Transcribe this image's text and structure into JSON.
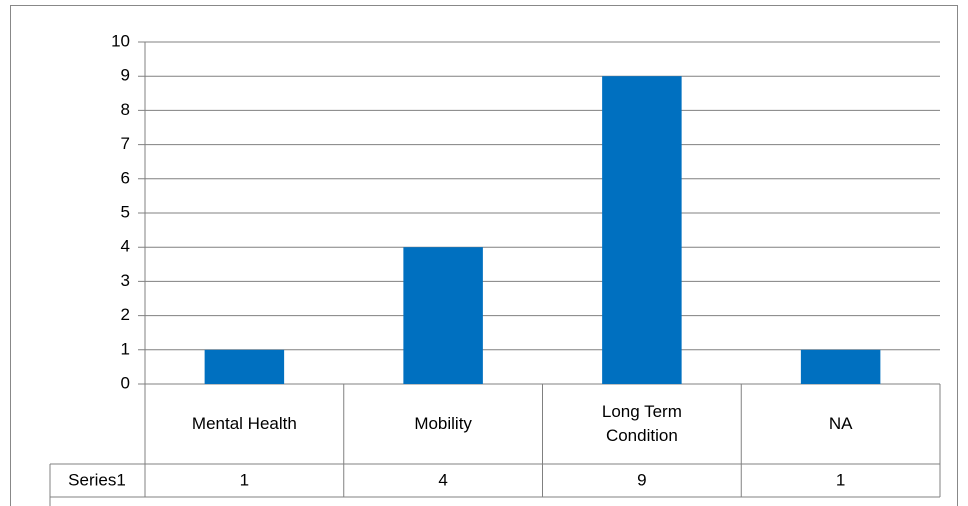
{
  "chart_data": {
    "type": "bar",
    "categories": [
      "Mental Health",
      "Mobility",
      "Long Term Condition",
      "NA"
    ],
    "series": [
      {
        "name": "Series1",
        "color": "#0070c0",
        "values": [
          1,
          4,
          9,
          1
        ]
      }
    ],
    "ylim": [
      0,
      10
    ],
    "yticks": [
      0,
      1,
      2,
      3,
      4,
      5,
      6,
      7,
      8,
      9,
      10
    ],
    "grid": true
  }
}
